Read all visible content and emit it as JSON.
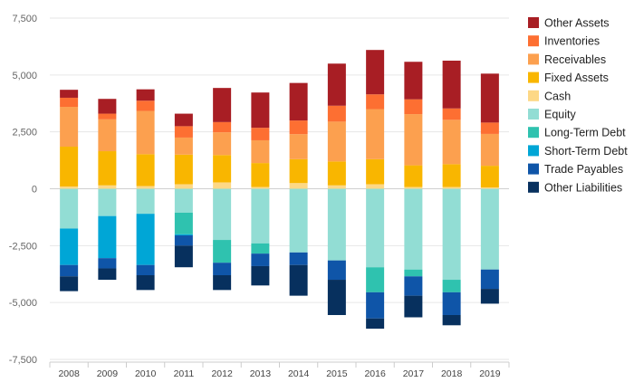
{
  "chart_data": {
    "type": "bar",
    "stacked": true,
    "title": "",
    "xlabel": "",
    "ylabel": "",
    "categories": [
      "2008",
      "2009",
      "2010",
      "2011",
      "2012",
      "2013",
      "2014",
      "2015",
      "2016",
      "2017",
      "2018",
      "2019"
    ],
    "ylim": [
      -7500,
      7500
    ],
    "yticks": [
      -7500,
      -5000,
      -2500,
      0,
      2500,
      5000,
      7500
    ],
    "ytick_labels": [
      "-7,500",
      "-5,000",
      "-2,500",
      "0",
      "2,500",
      "5,000",
      "7,500"
    ],
    "grid": true,
    "legend_position": "right",
    "series": [
      {
        "name": "Cash",
        "color": "#FDD886",
        "values": [
          100,
          150,
          120,
          200,
          280,
          80,
          250,
          150,
          200,
          80,
          80,
          60
        ]
      },
      {
        "name": "Fixed Assets",
        "color": "#F9B600",
        "values": [
          1750,
          1500,
          1400,
          1300,
          1200,
          1050,
          1050,
          1050,
          1100,
          950,
          1000,
          950
        ]
      },
      {
        "name": "Receivables",
        "color": "#FCA04F",
        "values": [
          1750,
          1400,
          1900,
          750,
          1000,
          1000,
          1100,
          1750,
          2200,
          2250,
          1950,
          1400
        ]
      },
      {
        "name": "Inventories",
        "color": "#FD6F32",
        "values": [
          400,
          250,
          450,
          500,
          450,
          550,
          600,
          700,
          650,
          650,
          500,
          500
        ]
      },
      {
        "name": "Other Assets",
        "color": "#A81E24",
        "values": [
          350,
          650,
          500,
          550,
          1500,
          1550,
          1650,
          1850,
          1950,
          1650,
          2100,
          2150
        ]
      },
      {
        "name": "Equity",
        "color": "#92DDD4",
        "values": [
          -1750,
          -1200,
          -1100,
          -1050,
          -2250,
          -2400,
          -2800,
          -3150,
          -3450,
          -3550,
          -4000,
          -3550
        ]
      },
      {
        "name": "Long-Term Debt",
        "color": "#2FC2AF",
        "values": [
          0,
          0,
          0,
          -950,
          -1000,
          -450,
          0,
          0,
          -1100,
          -300,
          -550,
          0
        ]
      },
      {
        "name": "Short-Term Debt",
        "color": "#00A6D6",
        "values": [
          -1600,
          -1850,
          -2250,
          -50,
          0,
          0,
          0,
          0,
          0,
          0,
          0,
          0
        ]
      },
      {
        "name": "Trade Payables",
        "color": "#0F55A8",
        "values": [
          -500,
          -450,
          -450,
          -450,
          -550,
          -550,
          -550,
          -850,
          -1150,
          -850,
          -1000,
          -850
        ]
      },
      {
        "name": "Other Liabilities",
        "color": "#07305E",
        "values": [
          -650,
          -500,
          -650,
          -950,
          -650,
          -850,
          -1350,
          -1550,
          -450,
          -950,
          -450,
          -650
        ]
      }
    ]
  },
  "legend_order": [
    "Other Assets",
    "Inventories",
    "Receivables",
    "Fixed Assets",
    "Cash",
    "Equity",
    "Long-Term Debt",
    "Short-Term Debt",
    "Trade Payables",
    "Other Liabilities"
  ]
}
